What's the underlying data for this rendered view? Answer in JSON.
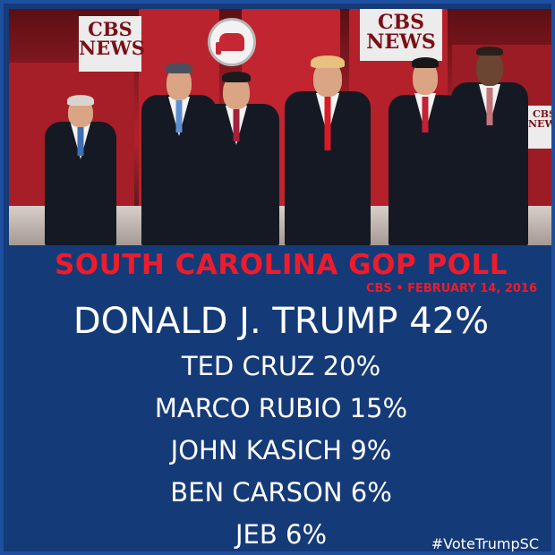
{
  "photo": {
    "signs": {
      "left": "CBS NEWS",
      "right": "CBS NEWS",
      "edge": "CBS NEWS"
    },
    "candidates_count_shown": 6,
    "colors": {
      "stage_red": "#b0222a",
      "background_blue": "#153a78",
      "headline_red": "#ee1b2c",
      "text_white": "#ffffff"
    }
  },
  "headline": "SOUTH CAROLINA GOP POLL",
  "subline": "CBS • FEBRUARY 14, 2016",
  "leader": "DONALD J. TRUMP 42%",
  "candidates": [
    "TED CRUZ 20%",
    "MARCO RUBIO 15%",
    "JOHN KASICH 9%",
    "BEN CARSON 6%",
    "JEB 6%"
  ],
  "hashtag": "#VoteTrumpSC"
}
